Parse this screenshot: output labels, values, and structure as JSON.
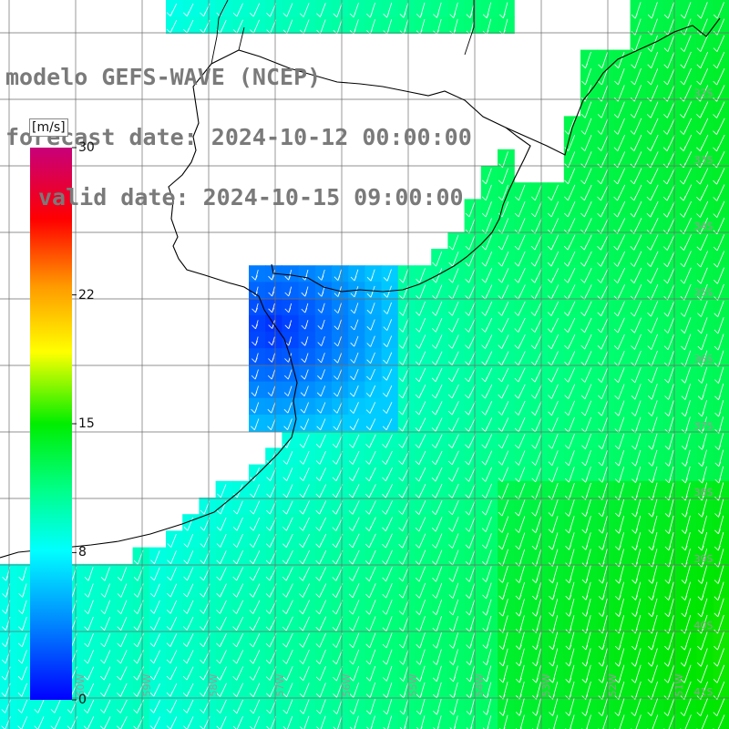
{
  "title": {
    "line1": "modelo GEFS-WAVE (NCEP)",
    "line2": "forecast date: 2024-10-12 00:00:00",
    "line3": "valid date: 2024-10-15 09:00:00"
  },
  "colorbar": {
    "unit": "[m/s]",
    "min": 0,
    "max": 30,
    "ticks": [
      {
        "value": 30,
        "label": "30"
      },
      {
        "value": 22,
        "label": "22"
      },
      {
        "value": 15,
        "label": "15"
      },
      {
        "value": 8,
        "label": "8"
      },
      {
        "value": 0,
        "label": "0"
      }
    ],
    "colors": [
      "#0000ff",
      "#00aaff",
      "#00ffff",
      "#00ff66",
      "#00ff00",
      "#ffff00",
      "#ff8800",
      "#ff0000",
      "#cc0077"
    ]
  },
  "map": {
    "variable": "wind speed",
    "vector_symbol": "arrow",
    "vector_color": "#ffffff",
    "gridline_color": "#6e6e6e",
    "coastline_color": "#000000",
    "land_color": "#ffffff",
    "lat_labels": [
      "32S",
      "33S",
      "34S",
      "35S",
      "36S",
      "37S",
      "38S",
      "39S",
      "40S",
      "41S"
    ],
    "lon_labels": [
      "60W",
      "59W",
      "58W",
      "57W",
      "56W",
      "55W",
      "54W",
      "53W",
      "52W",
      "51W",
      "50W"
    ]
  }
}
